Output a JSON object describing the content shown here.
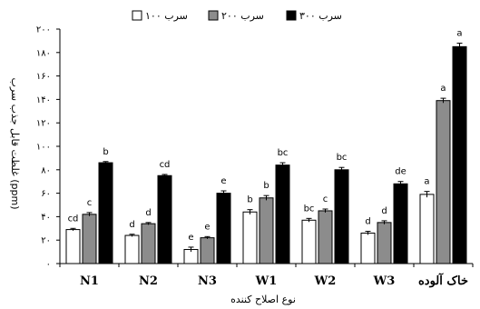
{
  "chart_data": {
    "type": "bar",
    "xlabel": "نوع اصلاح کننده",
    "ylabel": "غلظت قابل جذب سرب (ppm)",
    "ylim": [
      0,
      200
    ],
    "yticks": [
      "۰",
      "۲۰",
      "۴۰",
      "۶۰",
      "۸۰",
      "۱۰۰",
      "۱۲۰",
      "۱۴۰",
      "۱۶۰",
      "۱۸۰",
      "۲۰۰"
    ],
    "ytick_values": [
      0,
      20,
      40,
      60,
      80,
      100,
      120,
      140,
      160,
      180,
      200
    ],
    "categories": [
      "N1",
      "N2",
      "N3",
      "W1",
      "W2",
      "W3",
      "خاک آلوده"
    ],
    "legend_position": "top",
    "series": [
      {
        "name": "سرب ۱۰۰",
        "color": "#ffffff",
        "values": [
          29,
          24,
          12,
          44,
          37,
          26,
          59
        ],
        "errors": [
          1,
          1,
          2,
          2,
          1.5,
          1.5,
          2.5
        ],
        "labels": [
          "cd",
          "d",
          "e",
          "b",
          "bc",
          "d",
          "a"
        ]
      },
      {
        "name": "سرب ۲۰۰",
        "color": "#8c8c8c",
        "values": [
          42,
          34,
          22,
          56,
          45,
          35,
          139
        ],
        "errors": [
          1.5,
          1,
          1,
          2,
          1.5,
          1.5,
          2
        ],
        "labels": [
          "c",
          "d",
          "e",
          "b",
          "c",
          "d",
          "a"
        ]
      },
      {
        "name": "سرب ۳۰۰",
        "color": "#000000",
        "values": [
          86,
          75,
          60,
          84,
          80,
          68,
          185
        ],
        "errors": [
          1,
          1,
          2,
          2,
          2,
          2,
          3
        ],
        "labels": [
          "b",
          "cd",
          "e",
          "bc",
          "bc",
          "de",
          "a"
        ]
      }
    ]
  }
}
